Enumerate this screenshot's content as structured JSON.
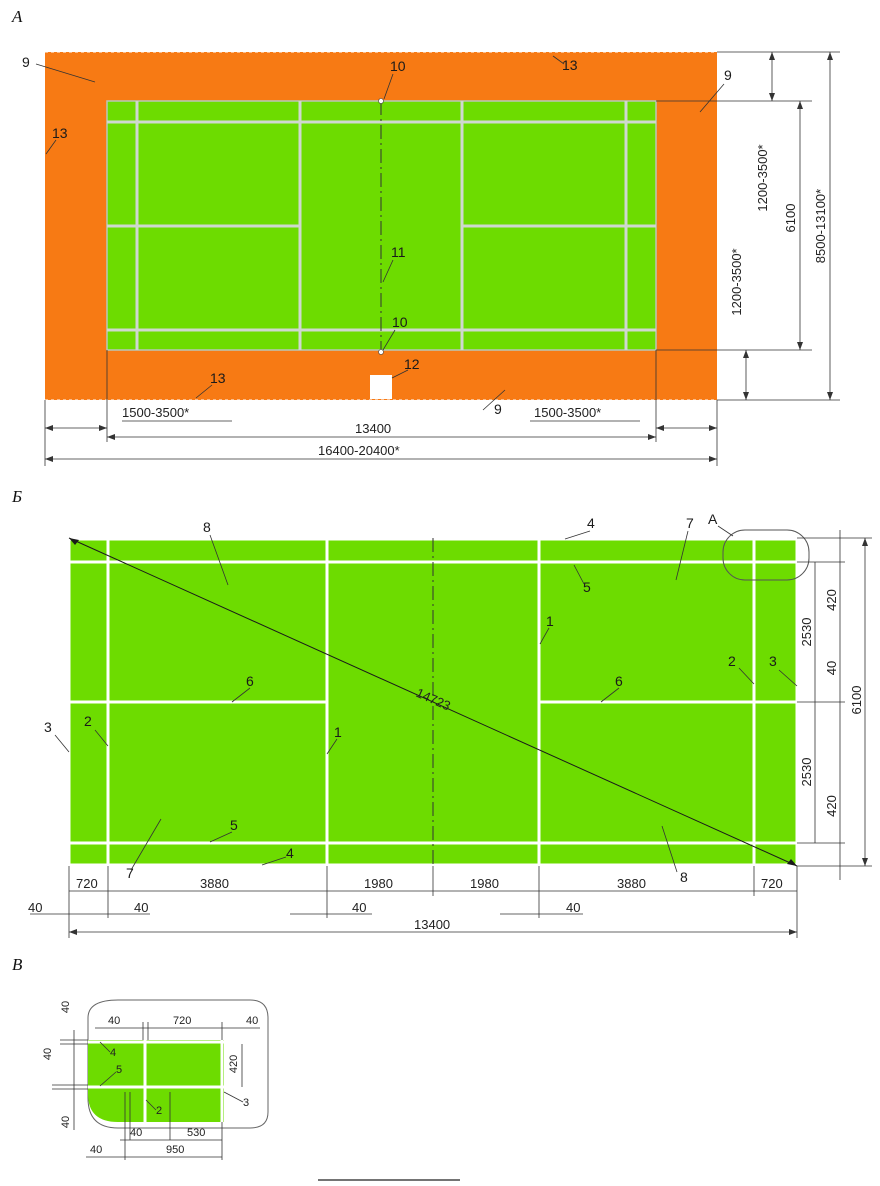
{
  "sections": {
    "a": "А",
    "b": "Б",
    "v": "В"
  },
  "colors": {
    "runout": "#f77a14",
    "court": "#6ddc00",
    "lines": "#ffffff"
  },
  "panel_a": {
    "markers": {
      "m9_left": "9",
      "m9_right": "9",
      "m9_bottom": "9",
      "m10_top": "10",
      "m10_bottom": "10",
      "m11": "11",
      "m12": "12",
      "m13_top": "13",
      "m13_left": "13",
      "m13_bottom": "13"
    },
    "dims": {
      "runout_left": "1500-3500*",
      "runout_right": "1500-3500*",
      "court_length": "13400",
      "total_length": "16400-20400*",
      "runout_top": "1200-3500*",
      "runout_bottom": "1200-3500*",
      "court_width": "6100",
      "total_width": "8500-13100*"
    }
  },
  "panel_b": {
    "markers": {
      "m1_left": "1",
      "m1_right": "1",
      "m2_left": "2",
      "m2_right": "2",
      "m3_left": "3",
      "m3_right": "3",
      "m4_top": "4",
      "m4_bottom": "4",
      "m5_top": "5",
      "m5_bottom": "5",
      "m6_left": "6",
      "m6_right": "6",
      "m7_top": "7",
      "m7_bottom": "7",
      "m8_top": "8",
      "m8_bottom": "8",
      "callout": "А"
    },
    "diagonal": "14723",
    "dims_bottom": [
      "720",
      "3880",
      "1980",
      "1980",
      "3880",
      "720"
    ],
    "dims_bottom2": [
      "40",
      "40",
      "40",
      "40"
    ],
    "total": "13400",
    "dims_right": [
      "420",
      "2530",
      "40",
      "2530",
      "420"
    ],
    "width": "6100"
  },
  "panel_v": {
    "top": [
      "40",
      "720",
      "40"
    ],
    "left": [
      "40",
      "40",
      "40"
    ],
    "right": "420",
    "bottom": [
      "40",
      "530",
      "40",
      "950"
    ],
    "markers": {
      "m2": "2",
      "m3": "3",
      "m4": "4",
      "m5": "5"
    }
  }
}
